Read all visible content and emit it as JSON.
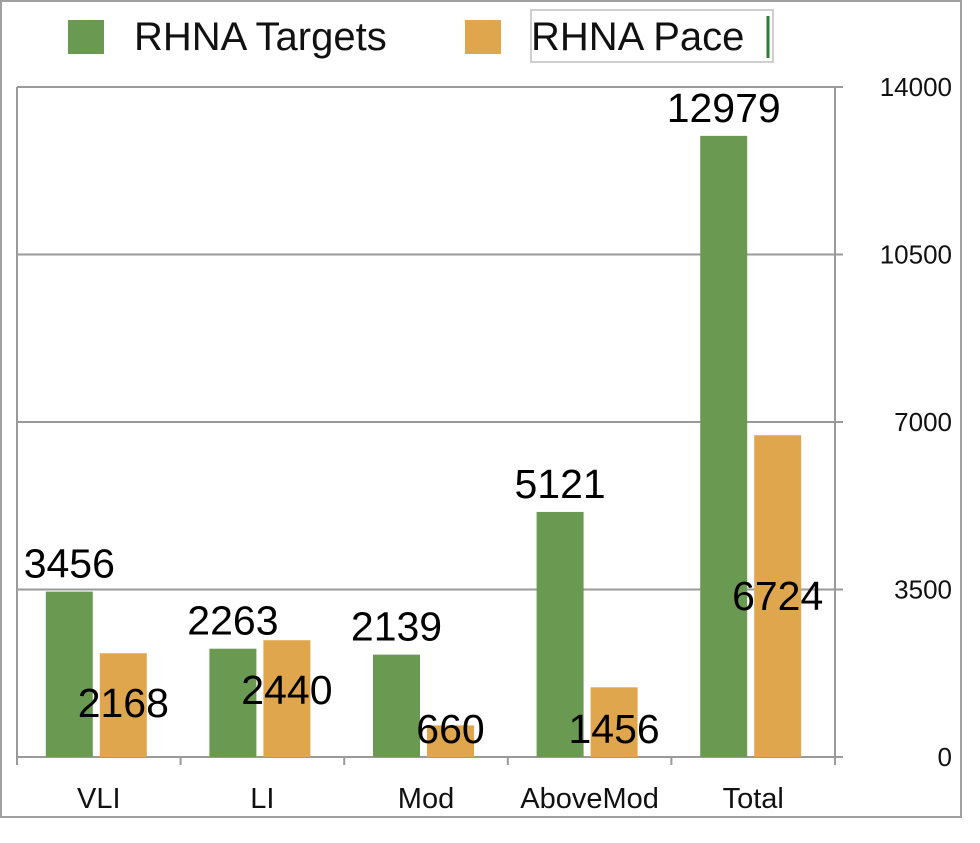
{
  "chart_data": {
    "type": "bar",
    "categories": [
      "VLI",
      "LI",
      "Mod",
      "AboveMod",
      "Total"
    ],
    "series": [
      {
        "name": "RHNA Targets",
        "values": [
          3456,
          2263,
          2139,
          5121,
          12979
        ],
        "color": "#6a9a52"
      },
      {
        "name": "RHNA Pace",
        "values": [
          2168,
          2440,
          660,
          1456,
          6724
        ],
        "color": "#e0a64e"
      }
    ],
    "yticks": [
      "0",
      "3500",
      "7000",
      "10500",
      "14000"
    ],
    "ylim": [
      0,
      14000
    ],
    "grid": true,
    "legend_position": "top",
    "y_axis_side": "right",
    "data_labels": {
      "targets": [
        "3456",
        "2263",
        "2139",
        "5121",
        "12979"
      ],
      "pace": [
        "2168",
        "2440",
        "660",
        "1456",
        "6724"
      ]
    }
  }
}
